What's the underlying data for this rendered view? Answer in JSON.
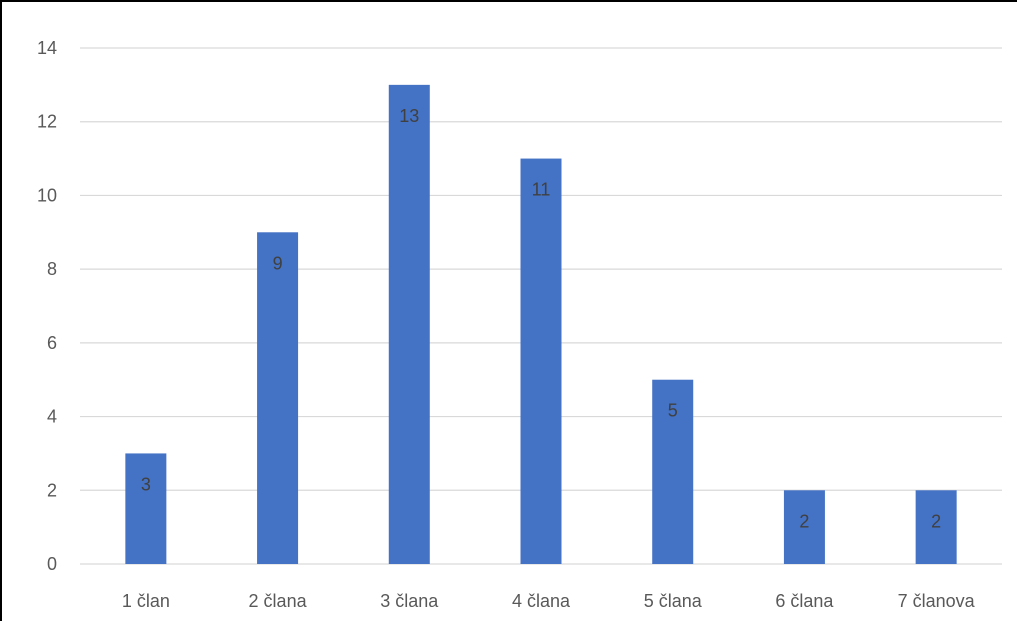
{
  "chart_data": {
    "type": "bar",
    "title": "",
    "xlabel": "",
    "ylabel": "",
    "categories": [
      "1 član",
      "2 člana",
      "3 člana",
      "4 člana",
      "5 člana",
      "6 člana",
      "7 članova"
    ],
    "values": [
      3,
      9,
      13,
      11,
      5,
      2,
      2
    ],
    "data_labels": [
      "3",
      "9",
      "13",
      "11",
      "5",
      "2",
      "2"
    ],
    "ylim": [
      0,
      14
    ],
    "yticks": [
      "0",
      "2",
      "4",
      "6",
      "8",
      "10",
      "12",
      "14"
    ],
    "grid": true,
    "legend": "none",
    "colors": {
      "bar": "#4472C4",
      "grid": "#D9D9D9",
      "text": "#595959"
    }
  }
}
